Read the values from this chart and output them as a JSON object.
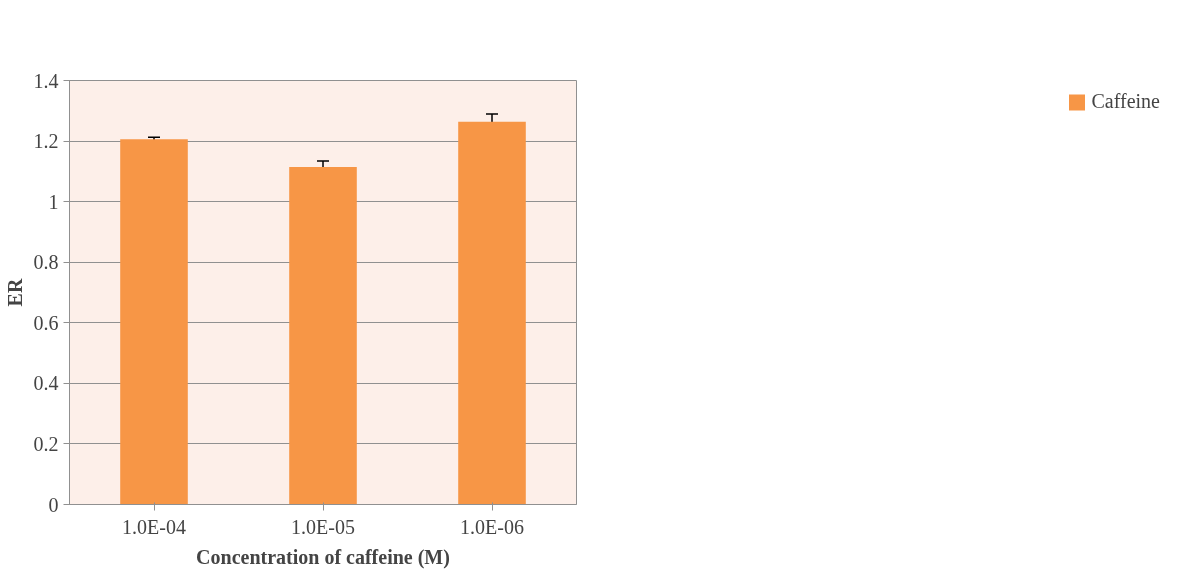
{
  "chart_data": {
    "type": "bar",
    "xlabel": "Concentration of caffeine (M)",
    "ylabel": "ER",
    "categories": [
      "1.0E-04",
      "1.0E-05",
      "1.0E-06"
    ],
    "series": [
      {
        "name": "Caffeine",
        "color": "#f79646",
        "values": [
          1.206,
          1.114,
          1.264
        ],
        "errors": [
          0.007,
          0.02,
          0.025
        ]
      }
    ],
    "ylim": [
      0,
      1.4
    ],
    "yticks": [
      0,
      0.2,
      0.4,
      0.6,
      0.8,
      1,
      1.2,
      1.4
    ],
    "grid": "y",
    "legend": "right"
  }
}
